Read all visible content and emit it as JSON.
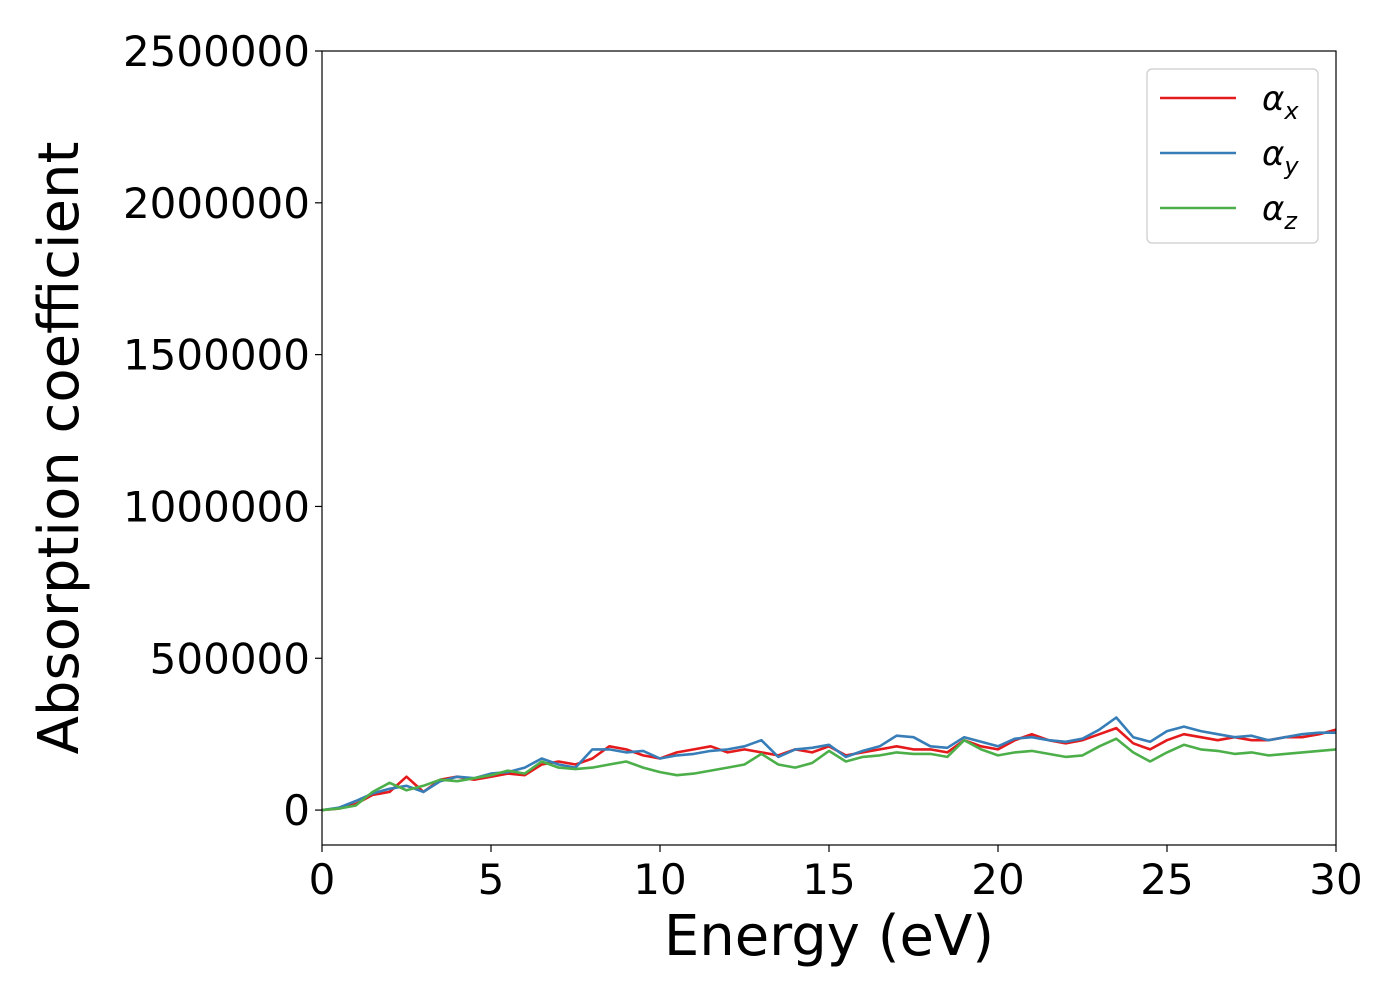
{
  "chart_data": {
    "type": "line",
    "xlabel": "Energy (eV)",
    "ylabel": "Absorption coefficient",
    "xlim": [
      0,
      30
    ],
    "ylim": [
      -115000,
      2500000
    ],
    "x_ticks": [
      0,
      5,
      10,
      15,
      20,
      25,
      30
    ],
    "x_tick_labels": [
      "0",
      "5",
      "10",
      "15",
      "20",
      "25",
      "30"
    ],
    "y_ticks": [
      0,
      500000,
      1000000,
      1500000,
      2000000,
      2500000
    ],
    "y_tick_labels": [
      "0",
      "500000",
      "1000000",
      "1500000",
      "2000000",
      "2500000"
    ],
    "grid": false,
    "legend_position": "top-right",
    "x": [
      0,
      0.5,
      1,
      1.5,
      2,
      2.5,
      3,
      3.5,
      4,
      4.5,
      5,
      5.5,
      6,
      6.5,
      7,
      7.5,
      8,
      8.5,
      9,
      9.5,
      10,
      10.5,
      11,
      11.5,
      12,
      12.5,
      13,
      13.5,
      14,
      14.5,
      15,
      15.5,
      16,
      16.5,
      17,
      17.5,
      18,
      18.5,
      19,
      19.5,
      20,
      20.5,
      21,
      21.5,
      22,
      22.5,
      23,
      23.5,
      24,
      24.5,
      25,
      25.5,
      26,
      26.5,
      27,
      27.5,
      28,
      28.5,
      29,
      29.5,
      30
    ],
    "series": [
      {
        "name_main": "α",
        "name_sub": "x",
        "color": "#e41a1c",
        "values": [
          0,
          5000,
          20000,
          50000,
          60000,
          110000,
          60000,
          100000,
          110000,
          100000,
          110000,
          120000,
          115000,
          150000,
          160000,
          150000,
          170000,
          210000,
          200000,
          180000,
          170000,
          190000,
          200000,
          210000,
          190000,
          200000,
          190000,
          180000,
          200000,
          190000,
          210000,
          180000,
          190000,
          200000,
          210000,
          200000,
          200000,
          190000,
          230000,
          210000,
          200000,
          230000,
          250000,
          230000,
          220000,
          230000,
          250000,
          270000,
          220000,
          200000,
          230000,
          250000,
          240000,
          230000,
          240000,
          230000,
          230000,
          240000,
          240000,
          250000,
          265000
        ]
      },
      {
        "name_main": "α",
        "name_sub": "y",
        "color": "#377eb8",
        "values": [
          0,
          8000,
          30000,
          55000,
          70000,
          80000,
          60000,
          95000,
          110000,
          105000,
          120000,
          125000,
          140000,
          170000,
          150000,
          140000,
          200000,
          200000,
          190000,
          195000,
          170000,
          180000,
          185000,
          195000,
          200000,
          210000,
          230000,
          175000,
          200000,
          205000,
          215000,
          175000,
          195000,
          210000,
          245000,
          240000,
          210000,
          205000,
          240000,
          225000,
          210000,
          235000,
          240000,
          230000,
          225000,
          235000,
          265000,
          305000,
          240000,
          225000,
          260000,
          275000,
          260000,
          250000,
          240000,
          245000,
          230000,
          240000,
          250000,
          255000,
          255000
        ]
      },
      {
        "name_main": "α",
        "name_sub": "z",
        "color": "#4daf4a",
        "values": [
          0,
          5000,
          15000,
          60000,
          90000,
          65000,
          80000,
          100000,
          95000,
          105000,
          115000,
          130000,
          120000,
          160000,
          140000,
          135000,
          140000,
          150000,
          160000,
          140000,
          125000,
          115000,
          120000,
          130000,
          140000,
          150000,
          185000,
          150000,
          140000,
          155000,
          195000,
          160000,
          175000,
          180000,
          190000,
          185000,
          185000,
          175000,
          230000,
          200000,
          180000,
          190000,
          195000,
          185000,
          175000,
          180000,
          210000,
          235000,
          190000,
          160000,
          190000,
          215000,
          200000,
          195000,
          185000,
          190000,
          180000,
          185000,
          190000,
          195000,
          200000
        ]
      }
    ]
  }
}
